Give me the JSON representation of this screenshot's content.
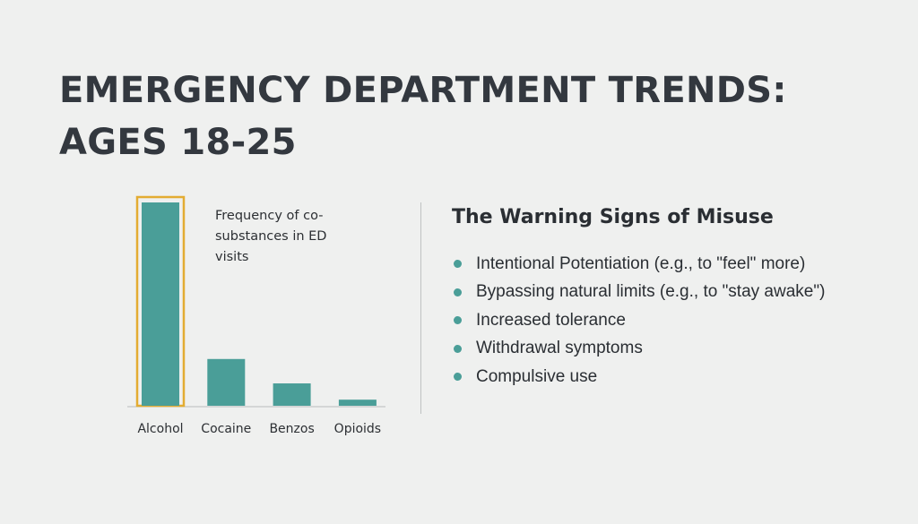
{
  "title": {
    "line1": "EMERGENCY DEPARTMENT TRENDS:",
    "line2": "AGES 18-25"
  },
  "chart_data": {
    "type": "bar",
    "title": "Frequency of co-substances in ED visits",
    "categories": [
      "Alcohol",
      "Cocaine",
      "Benzos",
      "Opioids"
    ],
    "values": [
      100,
      23,
      11,
      3
    ],
    "ylim": [
      0,
      100
    ],
    "highlight": "Alcohol",
    "grid": false,
    "xlabel": "",
    "ylabel": "",
    "colors": {
      "bar": "#4a9e98",
      "highlight_border": "#e3ac32"
    }
  },
  "chart_caption": {
    "line1": "Frequency of co-",
    "line2": "substances in ED",
    "line3": "visits"
  },
  "warning_signs": {
    "heading": "The Warning Signs of Misuse",
    "items": [
      "Intentional Potentiation (e.g., to \"feel\" more)",
      "Bypassing natural limits (e.g., to \"stay awake\")",
      "Increased tolerance",
      "Withdrawal symptoms",
      "Compulsive use"
    ]
  },
  "colors": {
    "background": "#eff0ef",
    "accent": "#4a9e98",
    "text": "#33383f"
  }
}
